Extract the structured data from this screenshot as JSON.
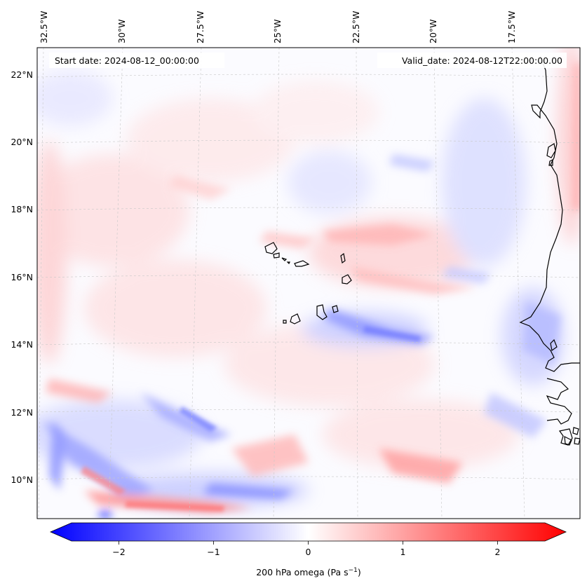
{
  "annotations": {
    "start_date": "Start date: 2024-08-12_00:00:00",
    "valid_date": "Valid_date: 2024-08-12T22:00:00.00"
  },
  "lon_labels": [
    "32.5°W",
    "30°W",
    "27.5°W",
    "25°W",
    "22.5°W",
    "20°W",
    "17.5°W"
  ],
  "lat_labels": [
    "22°N",
    "20°N",
    "18°N",
    "16°N",
    "14°N",
    "12°N",
    "10°N"
  ],
  "colorbar": {
    "ticks": [
      "−2",
      "−1",
      "0",
      "1",
      "2"
    ],
    "tick_values": [
      -2,
      -1,
      0,
      1,
      2
    ],
    "range": [
      -2.5,
      2.5
    ],
    "label": "200 hPa omega (Pa s",
    "label_sup": "−1",
    "label_end": ")",
    "colors": {
      "negative": "#0000ff",
      "zero": "#ffffff",
      "positive": "#ff0000"
    }
  },
  "colors": {
    "coastline": "#000000",
    "gridline": "#cccccc"
  }
}
